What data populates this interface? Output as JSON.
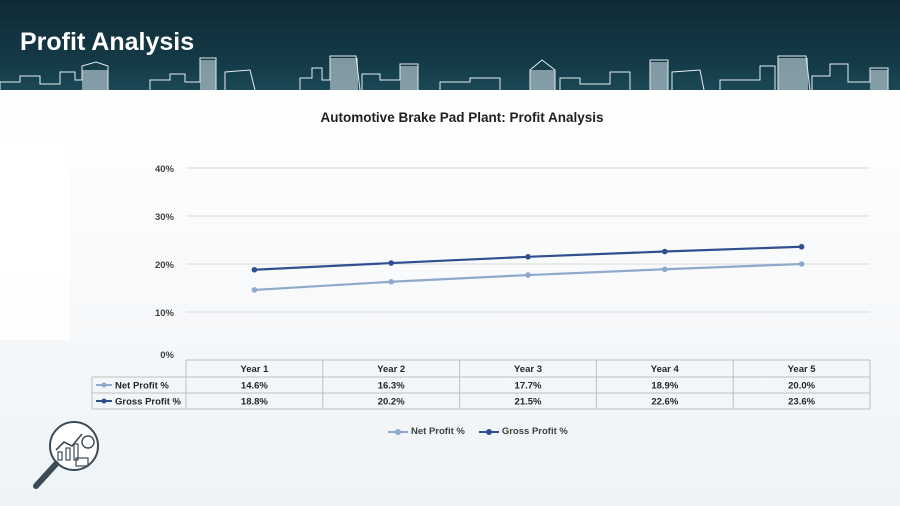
{
  "page": {
    "title": "Profit Analysis"
  },
  "colors": {
    "net_profit": "#8fa9cc",
    "gross_profit": "#2f4f8f",
    "header_bg": "#143a47",
    "grid": "#d9d9d9"
  },
  "chart_data": {
    "type": "line",
    "title": "Automotive Brake Pad Plant: Profit Analysis",
    "categories": [
      "Year 1",
      "Year 2",
      "Year 3",
      "Year 4",
      "Year 5"
    ],
    "y_ticks": [
      "0%",
      "10%",
      "20%",
      "30%",
      "40%"
    ],
    "ylim": [
      0,
      40
    ],
    "grid": true,
    "legend_position": "bottom",
    "series": [
      {
        "name": "Net Profit %",
        "values": [
          14.6,
          16.3,
          17.7,
          18.9,
          20.0
        ],
        "labels": [
          "14.6%",
          "16.3%",
          "17.7%",
          "18.9%",
          "20.0%"
        ]
      },
      {
        "name": "Gross Profit %",
        "values": [
          18.8,
          20.2,
          21.5,
          22.6,
          23.6
        ],
        "labels": [
          "18.8%",
          "20.2%",
          "21.5%",
          "22.6%",
          "23.6%"
        ]
      }
    ]
  },
  "icons": {
    "corner": "magnifier-chart-icon"
  }
}
